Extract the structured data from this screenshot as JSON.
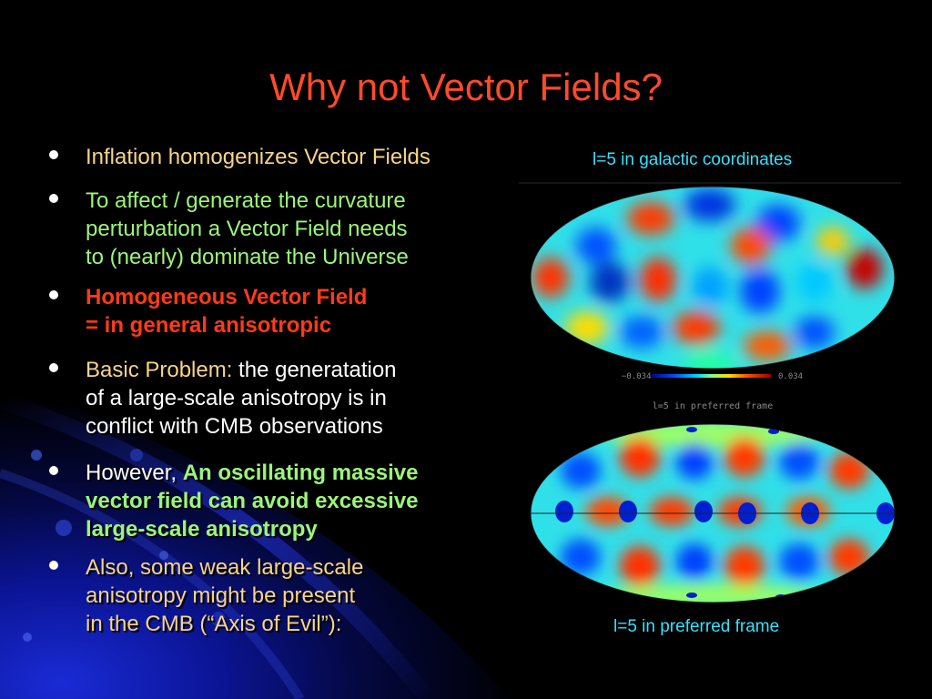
{
  "slide": {
    "title": "Why not Vector Fields?",
    "bullets": [
      {
        "lines": [
          [
            {
              "text": "Inflation homogenizes Vector Fields",
              "style": "gold"
            }
          ]
        ]
      },
      {
        "lines": [
          [
            {
              "text": "To affect / generate the curvature",
              "style": "green"
            }
          ],
          [
            {
              "text": "perturbation a Vector Field needs",
              "style": "green"
            }
          ],
          [
            {
              "text": "to (nearly) dominate the Universe",
              "style": "green"
            }
          ]
        ]
      },
      {
        "lines": [
          [
            {
              "text": "Homogeneous Vector Field",
              "style": "red-bold"
            }
          ],
          [
            {
              "text": "= in general anisotropic",
              "style": "red-bold"
            }
          ]
        ]
      },
      {
        "lines": [
          [
            {
              "text": "Basic Problem:",
              "style": "gold"
            },
            {
              "text": " the generatation",
              "style": "white"
            }
          ],
          [
            {
              "text": "of a large-scale anisotropy is in",
              "style": "white"
            }
          ],
          [
            {
              "text": "conflict with CMB observations",
              "style": "white"
            }
          ]
        ]
      },
      {
        "lines": [
          [
            {
              "text": "However, ",
              "style": "white"
            },
            {
              "text": "An oscillating massive",
              "style": "green-bold"
            }
          ],
          [
            {
              "text": "vector field can avoid excessive",
              "style": "green-bold"
            }
          ],
          [
            {
              "text": "large-scale anisotropy",
              "style": "green-bold"
            }
          ]
        ]
      },
      {
        "lines": [
          [
            {
              "text": "Also, some weak large-scale",
              "style": "gold"
            }
          ],
          [
            {
              "text": "anisotropy might be present",
              "style": "gold"
            }
          ],
          [
            {
              "text": "in the CMB (“Axis of Evil”):",
              "style": "gold"
            }
          ]
        ]
      }
    ],
    "figures": {
      "top_caption": "l=5 in galactic coordinates",
      "colorbar_min": "−0.034",
      "colorbar_max": "0.034",
      "inner_title": "l=5 in preferred frame",
      "bottom_caption": "l=5 in preferred frame"
    },
    "colors": {
      "title": "#ff4a2b",
      "gold": "#f7d487",
      "green": "#9cf57a",
      "red": "#ff3a1a",
      "caption": "#33e2ff"
    }
  }
}
